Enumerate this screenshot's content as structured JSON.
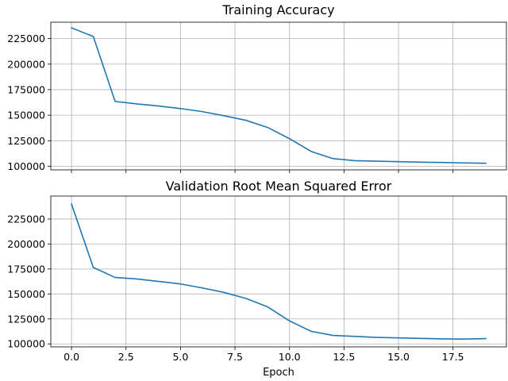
{
  "chart_data": [
    {
      "type": "line",
      "title": "Training Accuracy",
      "xlabel": "",
      "ylabel": "",
      "grid": true,
      "xlim": [
        -0.95,
        19.95
      ],
      "ylim": [
        96500,
        241000
      ],
      "x_ticks": [
        0,
        2.5,
        5,
        7.5,
        10,
        12.5,
        15,
        17.5
      ],
      "x_tick_labels": [
        "",
        "",
        "",
        "",
        "",
        "",
        "",
        ""
      ],
      "y_ticks": [
        100000,
        125000,
        150000,
        175000,
        200000,
        225000
      ],
      "y_tick_labels": [
        "100000",
        "125000",
        "150000",
        "175000",
        "200000",
        "225000"
      ],
      "series": [
        {
          "color": "#1f77b4",
          "x": [
            0,
            1,
            2,
            3,
            4,
            5,
            6,
            7,
            8,
            9,
            10,
            11,
            12,
            13,
            14,
            15,
            16,
            17,
            18,
            19
          ],
          "values": [
            235500,
            227000,
            163500,
            161000,
            159000,
            156500,
            153500,
            149500,
            145000,
            138000,
            127000,
            114500,
            107500,
            105500,
            105000,
            104500,
            104000,
            103700,
            103300,
            103000
          ]
        }
      ]
    },
    {
      "type": "line",
      "title": "Validation Root Mean Squared Error",
      "xlabel": "Epoch",
      "ylabel": "",
      "grid": true,
      "xlim": [
        -0.95,
        19.95
      ],
      "ylim": [
        97000,
        248000
      ],
      "x_ticks": [
        0,
        2.5,
        5,
        7.5,
        10,
        12.5,
        15,
        17.5
      ],
      "x_tick_labels": [
        "0.0",
        "2.5",
        "5.0",
        "7.5",
        "10.0",
        "12.5",
        "15.0",
        "17.5"
      ],
      "y_ticks": [
        100000,
        125000,
        150000,
        175000,
        200000,
        225000
      ],
      "y_tick_labels": [
        "100000",
        "125000",
        "150000",
        "175000",
        "200000",
        "225000"
      ],
      "series": [
        {
          "color": "#1f77b4",
          "x": [
            0,
            1,
            2,
            3,
            4,
            5,
            6,
            7,
            8,
            9,
            10,
            11,
            12,
            13,
            14,
            15,
            16,
            17,
            18,
            19
          ],
          "values": [
            240000,
            176500,
            166500,
            165000,
            162500,
            160000,
            156000,
            151500,
            145500,
            137000,
            123000,
            112500,
            108500,
            107500,
            106500,
            106000,
            105500,
            105000,
            104800,
            105300
          ]
        }
      ]
    }
  ]
}
